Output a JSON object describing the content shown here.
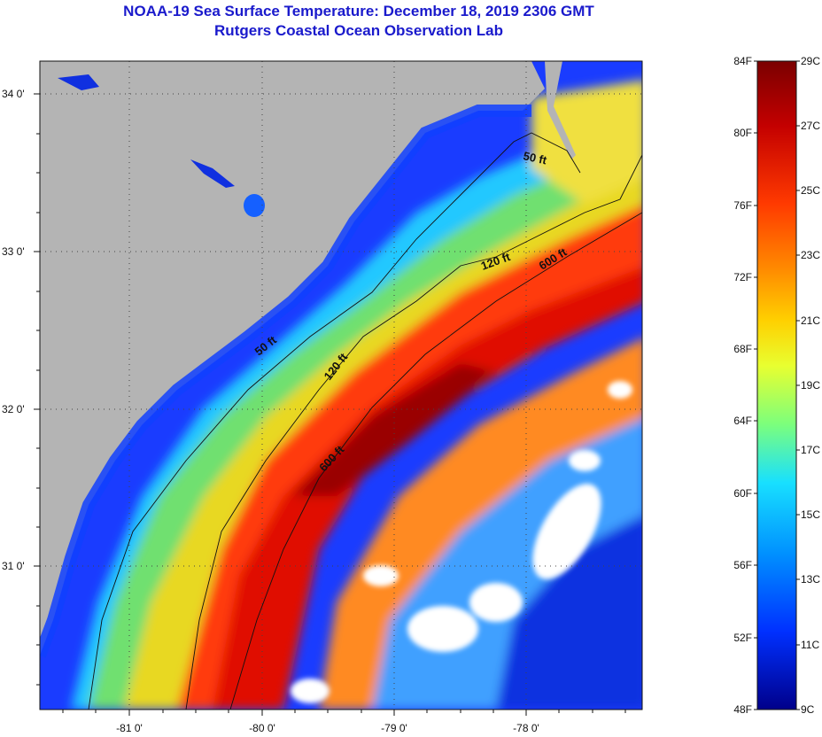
{
  "header": {
    "title": "NOAA-19 Sea Surface Temperature:  December 18, 2019 2306 GMT",
    "subtitle": "Rutgers Coastal Ocean Observation Lab"
  },
  "map": {
    "lat_labels": [
      "34 0'",
      "33 0'",
      "32 0'",
      "31 0'"
    ],
    "lon_labels": [
      "-81 0'",
      "-80 0'",
      "-79 0'",
      "-78 0'"
    ],
    "contours": [
      {
        "label": "50 ft",
        "depth_ft": 50
      },
      {
        "label": "50 ft",
        "depth_ft": 50
      },
      {
        "label": "120 ft",
        "depth_ft": 120
      },
      {
        "label": "120 ft",
        "depth_ft": 120
      },
      {
        "label": "600 ft",
        "depth_ft": 600
      },
      {
        "label": "600 ft",
        "depth_ft": 600
      }
    ],
    "colors": {
      "land": "#b4b4b4",
      "cloud": "#ffffff",
      "contour": "#111111"
    }
  },
  "colorbar": {
    "fahrenheit_labels": [
      "84F",
      "80F",
      "76F",
      "72F",
      "68F",
      "64F",
      "60F",
      "56F",
      "52F",
      "48F"
    ],
    "celsius_labels": [
      "29C",
      "27C",
      "25C",
      "23C",
      "21C",
      "19C",
      "17C",
      "15C",
      "13C",
      "11C",
      "9C"
    ],
    "gradient_top_to_bottom": [
      "#7a0000",
      "#c40000",
      "#ff3a00",
      "#ff8a00",
      "#ffd000",
      "#e8ff30",
      "#7cff7c",
      "#18e0ff",
      "#0090ff",
      "#0030ff",
      "#00008a"
    ]
  }
}
